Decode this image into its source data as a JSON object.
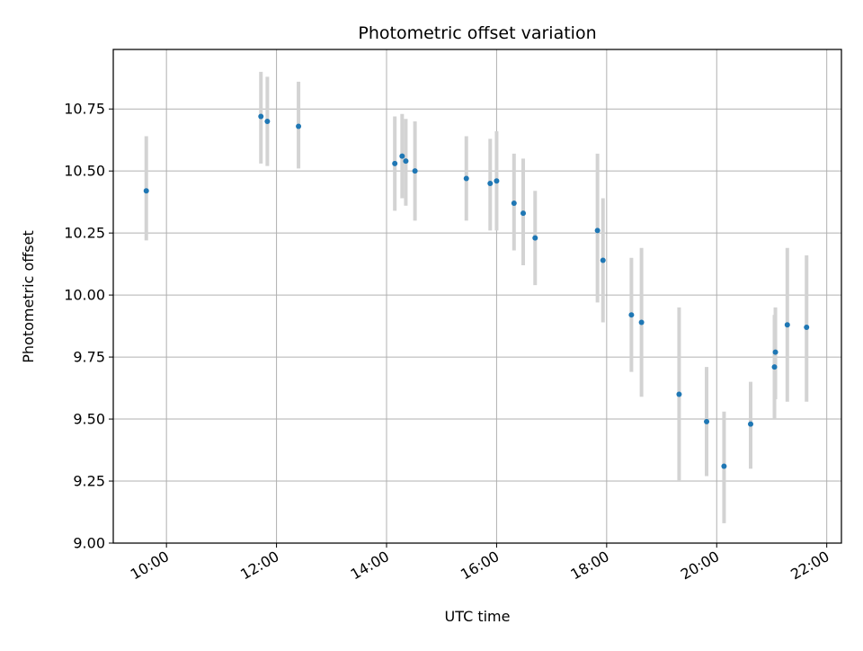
{
  "chart_data": {
    "type": "scatter",
    "title": "Photometric offset variation",
    "xlabel": "UTC time",
    "ylabel": "Photometric offset",
    "x_axis_type": "time",
    "xlim": [
      "09:02",
      "22:16"
    ],
    "ylim": [
      9.0,
      10.99
    ],
    "x_ticks": [
      "10:00",
      "12:00",
      "14:00",
      "16:00",
      "18:00",
      "20:00",
      "22:00"
    ],
    "y_ticks": [
      "9.00",
      "9.25",
      "9.50",
      "9.75",
      "10.00",
      "10.25",
      "10.50",
      "10.75"
    ],
    "grid": true,
    "legend": "none",
    "marker_color": "#1f77b4",
    "errorbar_color": "#d3d3d3",
    "points": [
      {
        "x": "09:38",
        "y": 10.42,
        "ylow": 10.22,
        "yhigh": 10.64
      },
      {
        "x": "11:43",
        "y": 10.72,
        "ylow": 10.53,
        "yhigh": 10.9
      },
      {
        "x": "11:50",
        "y": 10.7,
        "ylow": 10.52,
        "yhigh": 10.88
      },
      {
        "x": "12:24",
        "y": 10.68,
        "ylow": 10.51,
        "yhigh": 10.86
      },
      {
        "x": "14:09",
        "y": 10.53,
        "ylow": 10.34,
        "yhigh": 10.72
      },
      {
        "x": "14:17",
        "y": 10.56,
        "ylow": 10.39,
        "yhigh": 10.73
      },
      {
        "x": "14:21",
        "y": 10.54,
        "ylow": 10.36,
        "yhigh": 10.71
      },
      {
        "x": "14:31",
        "y": 10.5,
        "ylow": 10.3,
        "yhigh": 10.7
      },
      {
        "x": "15:27",
        "y": 10.47,
        "ylow": 10.3,
        "yhigh": 10.64
      },
      {
        "x": "15:53",
        "y": 10.45,
        "ylow": 10.26,
        "yhigh": 10.63
      },
      {
        "x": "16:00",
        "y": 10.46,
        "ylow": 10.26,
        "yhigh": 10.66
      },
      {
        "x": "16:19",
        "y": 10.37,
        "ylow": 10.18,
        "yhigh": 10.57
      },
      {
        "x": "16:29",
        "y": 10.33,
        "ylow": 10.12,
        "yhigh": 10.55
      },
      {
        "x": "16:42",
        "y": 10.23,
        "ylow": 10.04,
        "yhigh": 10.42
      },
      {
        "x": "17:50",
        "y": 10.26,
        "ylow": 9.97,
        "yhigh": 10.57
      },
      {
        "x": "17:56",
        "y": 10.14,
        "ylow": 9.89,
        "yhigh": 10.39
      },
      {
        "x": "18:27",
        "y": 9.92,
        "ylow": 9.69,
        "yhigh": 10.15
      },
      {
        "x": "18:38",
        "y": 9.89,
        "ylow": 9.59,
        "yhigh": 10.19
      },
      {
        "x": "19:19",
        "y": 9.6,
        "ylow": 9.25,
        "yhigh": 9.95
      },
      {
        "x": "19:49",
        "y": 9.49,
        "ylow": 9.27,
        "yhigh": 9.71
      },
      {
        "x": "20:08",
        "y": 9.31,
        "ylow": 9.08,
        "yhigh": 9.53
      },
      {
        "x": "20:37",
        "y": 9.48,
        "ylow": 9.3,
        "yhigh": 9.65
      },
      {
        "x": "21:03",
        "y": 9.71,
        "ylow": 9.5,
        "yhigh": 9.92
      },
      {
        "x": "21:04",
        "y": 9.77,
        "ylow": 9.58,
        "yhigh": 9.95
      },
      {
        "x": "21:17",
        "y": 9.88,
        "ylow": 9.57,
        "yhigh": 10.19
      },
      {
        "x": "21:38",
        "y": 9.87,
        "ylow": 9.57,
        "yhigh": 10.16
      }
    ]
  }
}
